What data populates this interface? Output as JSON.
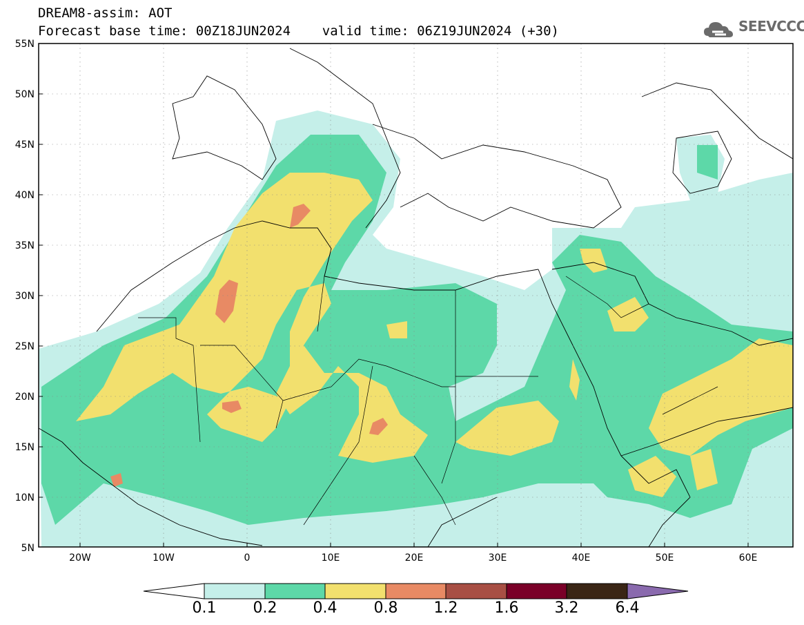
{
  "header": {
    "line1": "DREAM8-assim: AOT",
    "line2": "Forecast base time: 00Z18JUN2024    valid time: 06Z19JUN2024 (+30)",
    "logo_text": "SEEVCCC"
  },
  "map": {
    "lon_range": [
      -25,
      65
    ],
    "lat_range": [
      5,
      55
    ],
    "lon_ticks": [
      "20W",
      "10W",
      "0",
      "10E",
      "20E",
      "30E",
      "40E",
      "50E",
      "60E"
    ],
    "lat_ticks": [
      "55N",
      "50N",
      "45N",
      "40N",
      "35N",
      "30N",
      "25N",
      "20N",
      "15N",
      "10N",
      "5N"
    ]
  },
  "colorbar": {
    "labels": [
      "0.1",
      "0.2",
      "0.4",
      "0.8",
      "1.2",
      "1.6",
      "3.2",
      "6.4"
    ],
    "colors": {
      "under": "#ffffff",
      "c1": "#c5efe9",
      "c2": "#5dd8a8",
      "c3": "#f2e06e",
      "c4": "#e88a64",
      "c5": "#a84f44",
      "c6": "#7a0028",
      "c7": "#3a2515",
      "over": "#8a6aae"
    }
  }
}
